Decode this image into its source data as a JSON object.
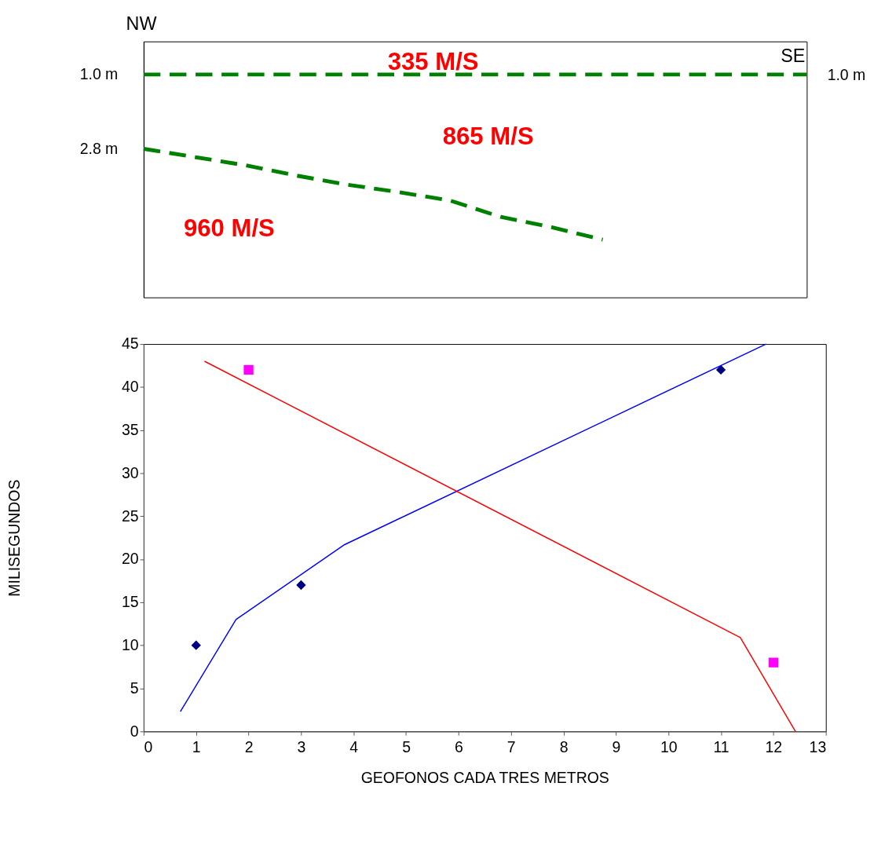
{
  "chart_data": [
    {
      "type": "line",
      "categories": [
        null,
        null,
        null,
        null,
        null,
        null,
        null,
        null,
        null,
        null,
        null,
        null,
        null,
        null
      ],
      "ylim": [
        6.4,
        0.2
      ],
      "yticks": [
        {
          "value": 1.0,
          "label": "1.0 m"
        },
        {
          "value": 2.8,
          "label": "2.8 m"
        }
      ],
      "tick_labels": "y",
      "line_style": "dashed",
      "grid": false,
      "series": [
        {
          "color": "#008000",
          "values": [
            1.0,
            1.0,
            1.0,
            1.0,
            1.0,
            1.0,
            1.0,
            1.0,
            1.0,
            1.0,
            1.0,
            1.0,
            1.0,
            1.0
          ]
        },
        {
          "color": "#008000",
          "values": [
            2.8,
            3.0,
            3.2,
            3.45,
            3.67,
            3.85,
            4.05,
            4.45,
            4.7,
            5.0,
            null,
            null,
            null,
            null
          ]
        }
      ],
      "annotations": [
        "NW",
        "SE",
        "335 M/S",
        "865 M/S",
        "960 M/S",
        "1.0 m"
      ]
    },
    {
      "type": "scatter",
      "xlabel": "GEOFONOS CADA TRES METROS",
      "ylabel": "MILISEGUNDOS",
      "xlim": [
        0,
        13
      ],
      "xticks": [
        0,
        1,
        2,
        3,
        4,
        5,
        6,
        7,
        8,
        9,
        10,
        11,
        12,
        13
      ],
      "ylim": [
        0,
        45
      ],
      "yticks": [
        0,
        5,
        10,
        15,
        20,
        25,
        30,
        35,
        40,
        45
      ],
      "grid": false,
      "series": [
        {
          "type": "scatter",
          "marker": "diamond",
          "color": "#000080",
          "x": [
            1,
            3,
            11
          ],
          "values": [
            10,
            17,
            42
          ]
        },
        {
          "type": "scatter",
          "marker": "square",
          "color": "#ff00ff",
          "x": [
            2,
            12
          ],
          "values": [
            42,
            8
          ]
        },
        {
          "type": "line",
          "color": "#0000ff",
          "x": [
            0.7,
            1.76,
            3.83,
            11.86
          ],
          "values": [
            2.3,
            13.0,
            21.7,
            45
          ]
        },
        {
          "type": "line",
          "color": "#ff0000",
          "x": [
            1.16,
            11.37,
            12.42
          ],
          "values": [
            43.0,
            10.9,
            0
          ]
        }
      ]
    }
  ]
}
